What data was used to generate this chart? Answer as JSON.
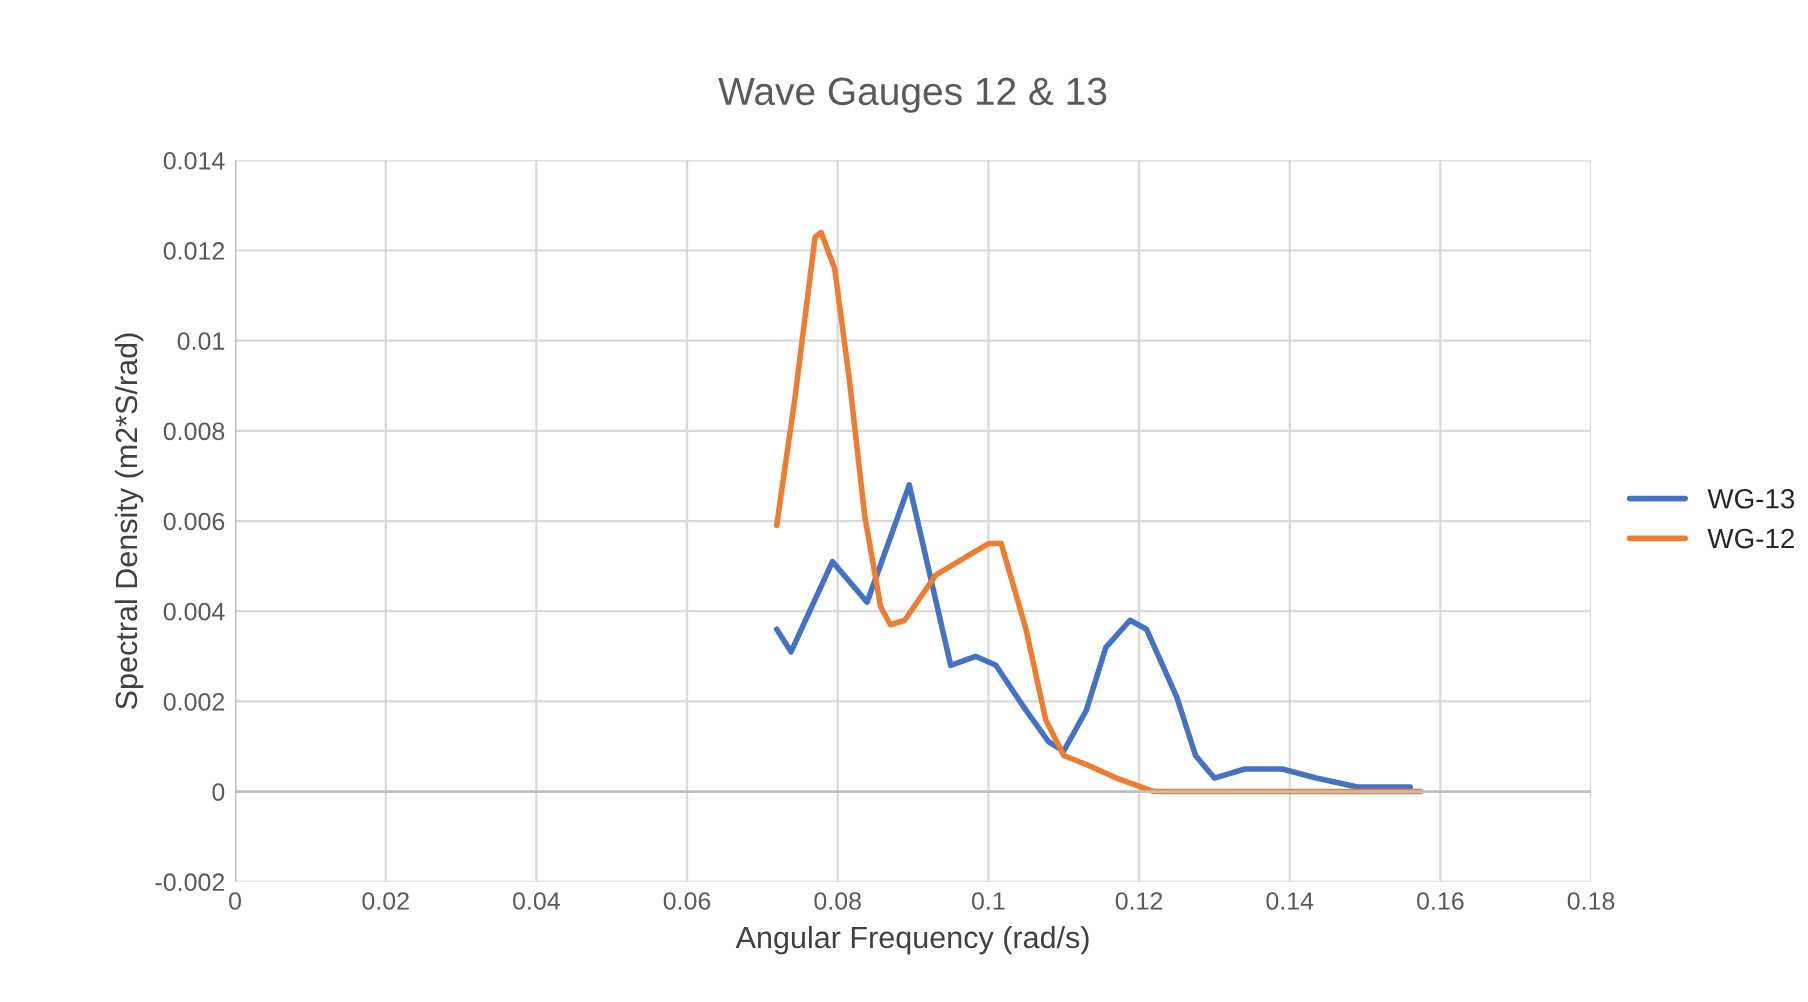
{
  "chart_data": {
    "type": "line",
    "title": "Wave Gauges 12 & 13",
    "xlabel": "Angular Frequency (rad/s)",
    "ylabel": "Spectral Density (m2*S/rad)",
    "xlim": [
      0,
      0.18
    ],
    "xticks": [
      0,
      0.02,
      0.04,
      0.06,
      0.08,
      0.1,
      0.12,
      0.14,
      0.16,
      0.18
    ],
    "ylim": [
      -0.002,
      0.014
    ],
    "yticks": [
      -0.002,
      0,
      0.002,
      0.004,
      0.006,
      0.008,
      0.01,
      0.012,
      0.014
    ],
    "grid": true,
    "legend": "right",
    "marker": "none",
    "line_style": "solid",
    "series": [
      {
        "name": "WG-13",
        "color": "#4472c4",
        "x": [
          0.0719,
          0.0738,
          0.0793,
          0.0839,
          0.0895,
          0.095,
          0.0983,
          0.101,
          0.105,
          0.108,
          0.11,
          0.113,
          0.1156,
          0.1188,
          0.121,
          0.125,
          0.1275,
          0.13,
          0.132,
          0.134,
          0.139,
          0.1435,
          0.149,
          0.156
        ],
        "values": [
          0.0036,
          0.0031,
          0.0051,
          0.0042,
          0.0068,
          0.0028,
          0.003,
          0.0028,
          0.0018,
          0.0011,
          0.0009,
          0.0018,
          0.0032,
          0.0038,
          0.0036,
          0.0021,
          0.0008,
          0.0003,
          0.0004,
          0.0005,
          0.0005,
          0.0003,
          0.0001,
          0.0001
        ]
      },
      {
        "name": "WG-12",
        "color": "#ed7d31",
        "x": [
          0.0719,
          0.0743,
          0.077,
          0.0778,
          0.0796,
          0.0815,
          0.0836,
          0.0857,
          0.087,
          0.0889,
          0.093,
          0.097,
          0.1,
          0.1017,
          0.105,
          0.1076,
          0.11,
          0.113,
          0.117,
          0.122,
          0.1574
        ],
        "values": [
          0.0059,
          0.0087,
          0.0123,
          0.0124,
          0.0116,
          0.0092,
          0.0061,
          0.0041,
          0.0037,
          0.0038,
          0.0048,
          0.0052,
          0.0055,
          0.0055,
          0.0036,
          0.0016,
          0.0008,
          0.0006,
          0.0003,
          0.0,
          0.0
        ]
      }
    ]
  }
}
